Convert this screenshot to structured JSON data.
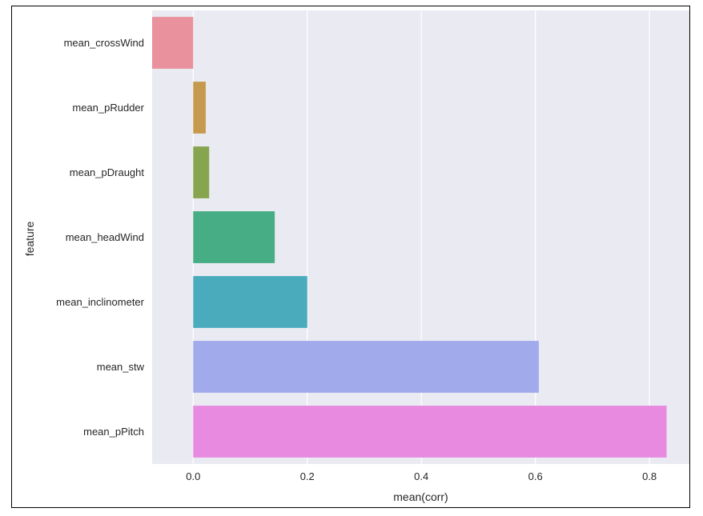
{
  "chart_data": {
    "type": "bar",
    "orientation": "horizontal",
    "categories": [
      "mean_crossWind",
      "mean_pRudder",
      "mean_pDraught",
      "mean_headWind",
      "mean_inclinometer",
      "mean_stw",
      "mean_pPitch"
    ],
    "values": [
      -0.072,
      0.022,
      0.028,
      0.143,
      0.2,
      0.606,
      0.83
    ],
    "colors": [
      "#e9919c",
      "#c69a4e",
      "#87a54f",
      "#46ad84",
      "#4aabbd",
      "#a1aaeb",
      "#e78ae0"
    ],
    "xlabel": "mean(corr)",
    "ylabel": "feature",
    "xlim": [
      -0.072,
      0.87
    ],
    "xticks": [
      0.0,
      0.2,
      0.4,
      0.6,
      0.8
    ],
    "xtick_labels": [
      "0.0",
      "0.2",
      "0.4",
      "0.6",
      "0.8"
    ],
    "grid": true,
    "background": "#eaeaf2",
    "style": "seaborn-darkgrid"
  }
}
